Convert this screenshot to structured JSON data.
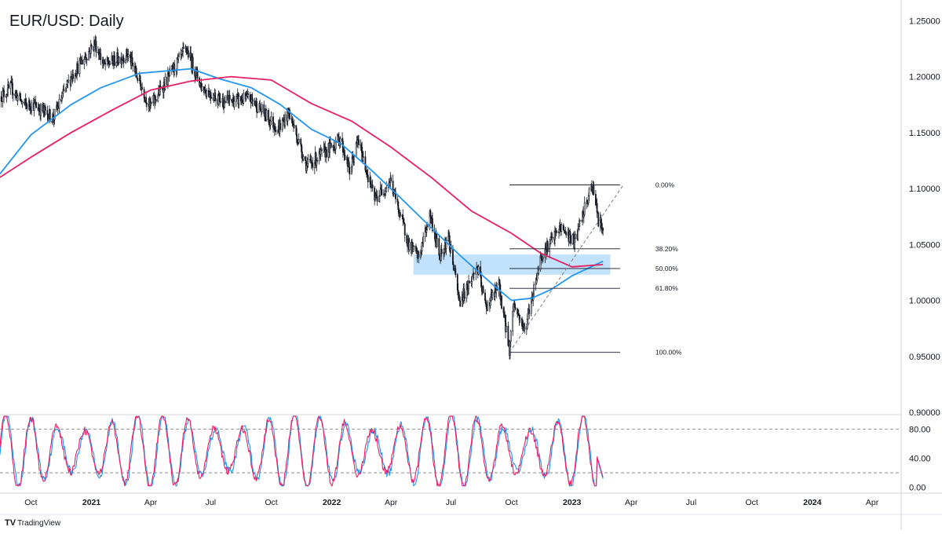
{
  "chart_data": [
    {
      "type": "candlestick",
      "title": "EUR/USD: Daily",
      "interval": "Daily",
      "y_axis": {
        "ticks": [
          "1.25000",
          "1.20000",
          "1.15000",
          "1.10000",
          "1.05000",
          "1.00000",
          "0.95000",
          "0.90000"
        ],
        "ylim": [
          0.9,
          1.265
        ]
      },
      "x_axis": {
        "tick_labels": [
          "Oct",
          "2021",
          "Apr",
          "Jul",
          "Oct",
          "2022",
          "Apr",
          "Jul",
          "Oct",
          "2023",
          "Apr",
          "Jul",
          "Oct",
          "2024",
          "Apr"
        ],
        "tick_dates": [
          "2020-10-01",
          "2021-01-01",
          "2021-04-01",
          "2021-07-01",
          "2021-10-01",
          "2022-01-01",
          "2022-04-01",
          "2022-07-01",
          "2022-10-01",
          "2023-01-01",
          "2023-04-01",
          "2023-07-01",
          "2023-10-01",
          "2024-01-01",
          "2024-04-01"
        ],
        "xlim": [
          "2020-08-15",
          "2024-05-15"
        ]
      },
      "price_keypoints": [
        [
          "2020-08-15",
          1.182
        ],
        [
          "2020-09-01",
          1.19
        ],
        [
          "2020-09-20",
          1.175
        ],
        [
          "2020-10-05",
          1.175
        ],
        [
          "2020-11-04",
          1.163
        ],
        [
          "2020-12-01",
          1.2
        ],
        [
          "2021-01-06",
          1.23
        ],
        [
          "2021-01-20",
          1.21
        ],
        [
          "2021-02-25",
          1.22
        ],
        [
          "2021-03-31",
          1.173
        ],
        [
          "2021-05-25",
          1.225
        ],
        [
          "2021-06-18",
          1.19
        ],
        [
          "2021-07-20",
          1.178
        ],
        [
          "2021-08-31",
          1.18
        ],
        [
          "2021-10-12",
          1.153
        ],
        [
          "2021-10-28",
          1.168
        ],
        [
          "2021-11-24",
          1.12
        ],
        [
          "2021-12-31",
          1.137
        ],
        [
          "2022-01-14",
          1.145
        ],
        [
          "2022-01-28",
          1.115
        ],
        [
          "2022-02-10",
          1.143
        ],
        [
          "2022-03-07",
          1.09
        ],
        [
          "2022-03-31",
          1.107
        ],
        [
          "2022-04-28",
          1.05
        ],
        [
          "2022-05-13",
          1.038
        ],
        [
          "2022-05-30",
          1.077
        ],
        [
          "2022-06-14",
          1.04
        ],
        [
          "2022-06-27",
          1.058
        ],
        [
          "2022-07-14",
          0.998
        ],
        [
          "2022-08-10",
          1.03
        ],
        [
          "2022-08-23",
          0.994
        ],
        [
          "2022-09-12",
          1.013
        ],
        [
          "2022-09-28",
          0.956
        ],
        [
          "2022-10-04",
          0.998
        ],
        [
          "2022-10-21",
          0.973
        ],
        [
          "2022-11-15",
          1.04
        ],
        [
          "2022-12-15",
          1.065
        ],
        [
          "2023-01-05",
          1.052
        ],
        [
          "2023-01-26",
          1.093
        ],
        [
          "2023-02-02",
          1.103
        ],
        [
          "2023-02-10",
          1.07
        ],
        [
          "2023-02-17",
          1.066
        ]
      ],
      "moving_averages": [
        {
          "color": "#2196f3",
          "points": [
            [
              "2020-08-15",
              1.113
            ],
            [
              "2020-10-01",
              1.148
            ],
            [
              "2020-12-01",
              1.175
            ],
            [
              "2021-01-15",
              1.19
            ],
            [
              "2021-03-15",
              1.203
            ],
            [
              "2021-06-01",
              1.207
            ],
            [
              "2021-07-15",
              1.198
            ],
            [
              "2021-09-01",
              1.19
            ],
            [
              "2021-10-15",
              1.175
            ],
            [
              "2021-12-01",
              1.153
            ],
            [
              "2022-01-15",
              1.14
            ],
            [
              "2022-03-01",
              1.117
            ],
            [
              "2022-04-15",
              1.092
            ],
            [
              "2022-06-01",
              1.065
            ],
            [
              "2022-07-15",
              1.04
            ],
            [
              "2022-09-01",
              1.015
            ],
            [
              "2022-10-01",
              1.0
            ],
            [
              "2022-11-01",
              1.002
            ],
            [
              "2022-12-01",
              1.01
            ],
            [
              "2023-01-01",
              1.022
            ],
            [
              "2023-02-17",
              1.035
            ]
          ]
        },
        {
          "color": "#e91e63",
          "points": [
            [
              "2020-08-15",
              1.11
            ],
            [
              "2020-10-01",
              1.128
            ],
            [
              "2020-12-01",
              1.15
            ],
            [
              "2021-02-01",
              1.17
            ],
            [
              "2021-04-01",
              1.188
            ],
            [
              "2021-06-01",
              1.196
            ],
            [
              "2021-08-01",
              1.2
            ],
            [
              "2021-10-01",
              1.197
            ],
            [
              "2021-12-01",
              1.176
            ],
            [
              "2022-02-01",
              1.16
            ],
            [
              "2022-04-01",
              1.137
            ],
            [
              "2022-06-01",
              1.11
            ],
            [
              "2022-08-01",
              1.08
            ],
            [
              "2022-10-01",
              1.06
            ],
            [
              "2022-11-15",
              1.042
            ],
            [
              "2023-01-01",
              1.03
            ],
            [
              "2023-02-17",
              1.032
            ]
          ]
        }
      ],
      "fibonacci": {
        "start_date": "2022-09-28",
        "end_date": "2023-02-17",
        "levels": [
          {
            "label": "0.00%",
            "price": 1.1033
          },
          {
            "label": "38.20%",
            "price": 1.0461
          },
          {
            "label": "50.00%",
            "price": 1.0285
          },
          {
            "label": "61.80%",
            "price": 1.0108
          },
          {
            "label": "100.00%",
            "price": 0.9536
          }
        ]
      },
      "trendline": {
        "from": [
          "2022-09-28",
          0.9536
        ],
        "to": [
          "2023-03-20",
          1.1033
        ]
      },
      "zone": {
        "from_date": "2022-05-05",
        "to_date": "2023-02-28",
        "price_low": 1.023,
        "price_high": 1.041,
        "color": "#90caf9"
      }
    },
    {
      "type": "line",
      "indicator": "oscillator",
      "y_axis": {
        "ticks": [
          "80.00",
          "40.00",
          "0.00"
        ],
        "ylim": [
          -8,
          100
        ]
      },
      "levels": [
        80,
        20
      ],
      "series": [
        {
          "color": "#2196f3",
          "cycles": 46,
          "end_value": 12
        },
        {
          "color": "#e91e63",
          "cycles": 46,
          "end_value": 14
        }
      ]
    }
  ],
  "branding": {
    "logo": "TV",
    "text": "TradingView"
  }
}
